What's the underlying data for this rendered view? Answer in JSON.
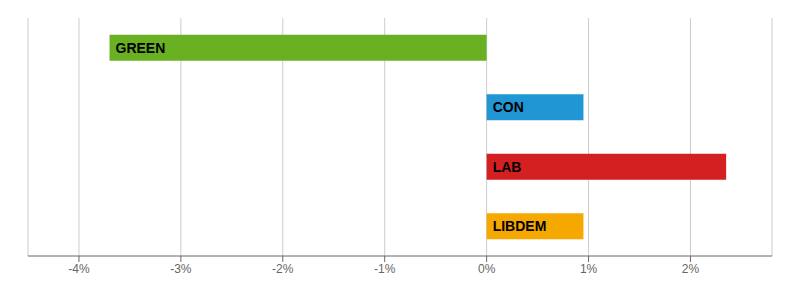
{
  "chart_data": {
    "type": "bar",
    "orientation": "horizontal",
    "categories": [
      "GREEN",
      "CON",
      "LAB",
      "LIBDEM"
    ],
    "values": [
      -3.7,
      0.95,
      2.35,
      0.95
    ],
    "colors": [
      "#6ab023",
      "#2196d4",
      "#d42020",
      "#f5a800"
    ],
    "xlim": [
      -4.5,
      2.8
    ],
    "xticks": [
      {
        "value": -4,
        "label": "-4%"
      },
      {
        "value": -3,
        "label": "-3%"
      },
      {
        "value": -2,
        "label": "-2%"
      },
      {
        "value": -1,
        "label": "-1%"
      },
      {
        "value": 0,
        "label": "0%"
      },
      {
        "value": 1,
        "label": "1%"
      },
      {
        "value": 2,
        "label": "2%"
      }
    ],
    "grid": true,
    "tick_labels": "x"
  }
}
